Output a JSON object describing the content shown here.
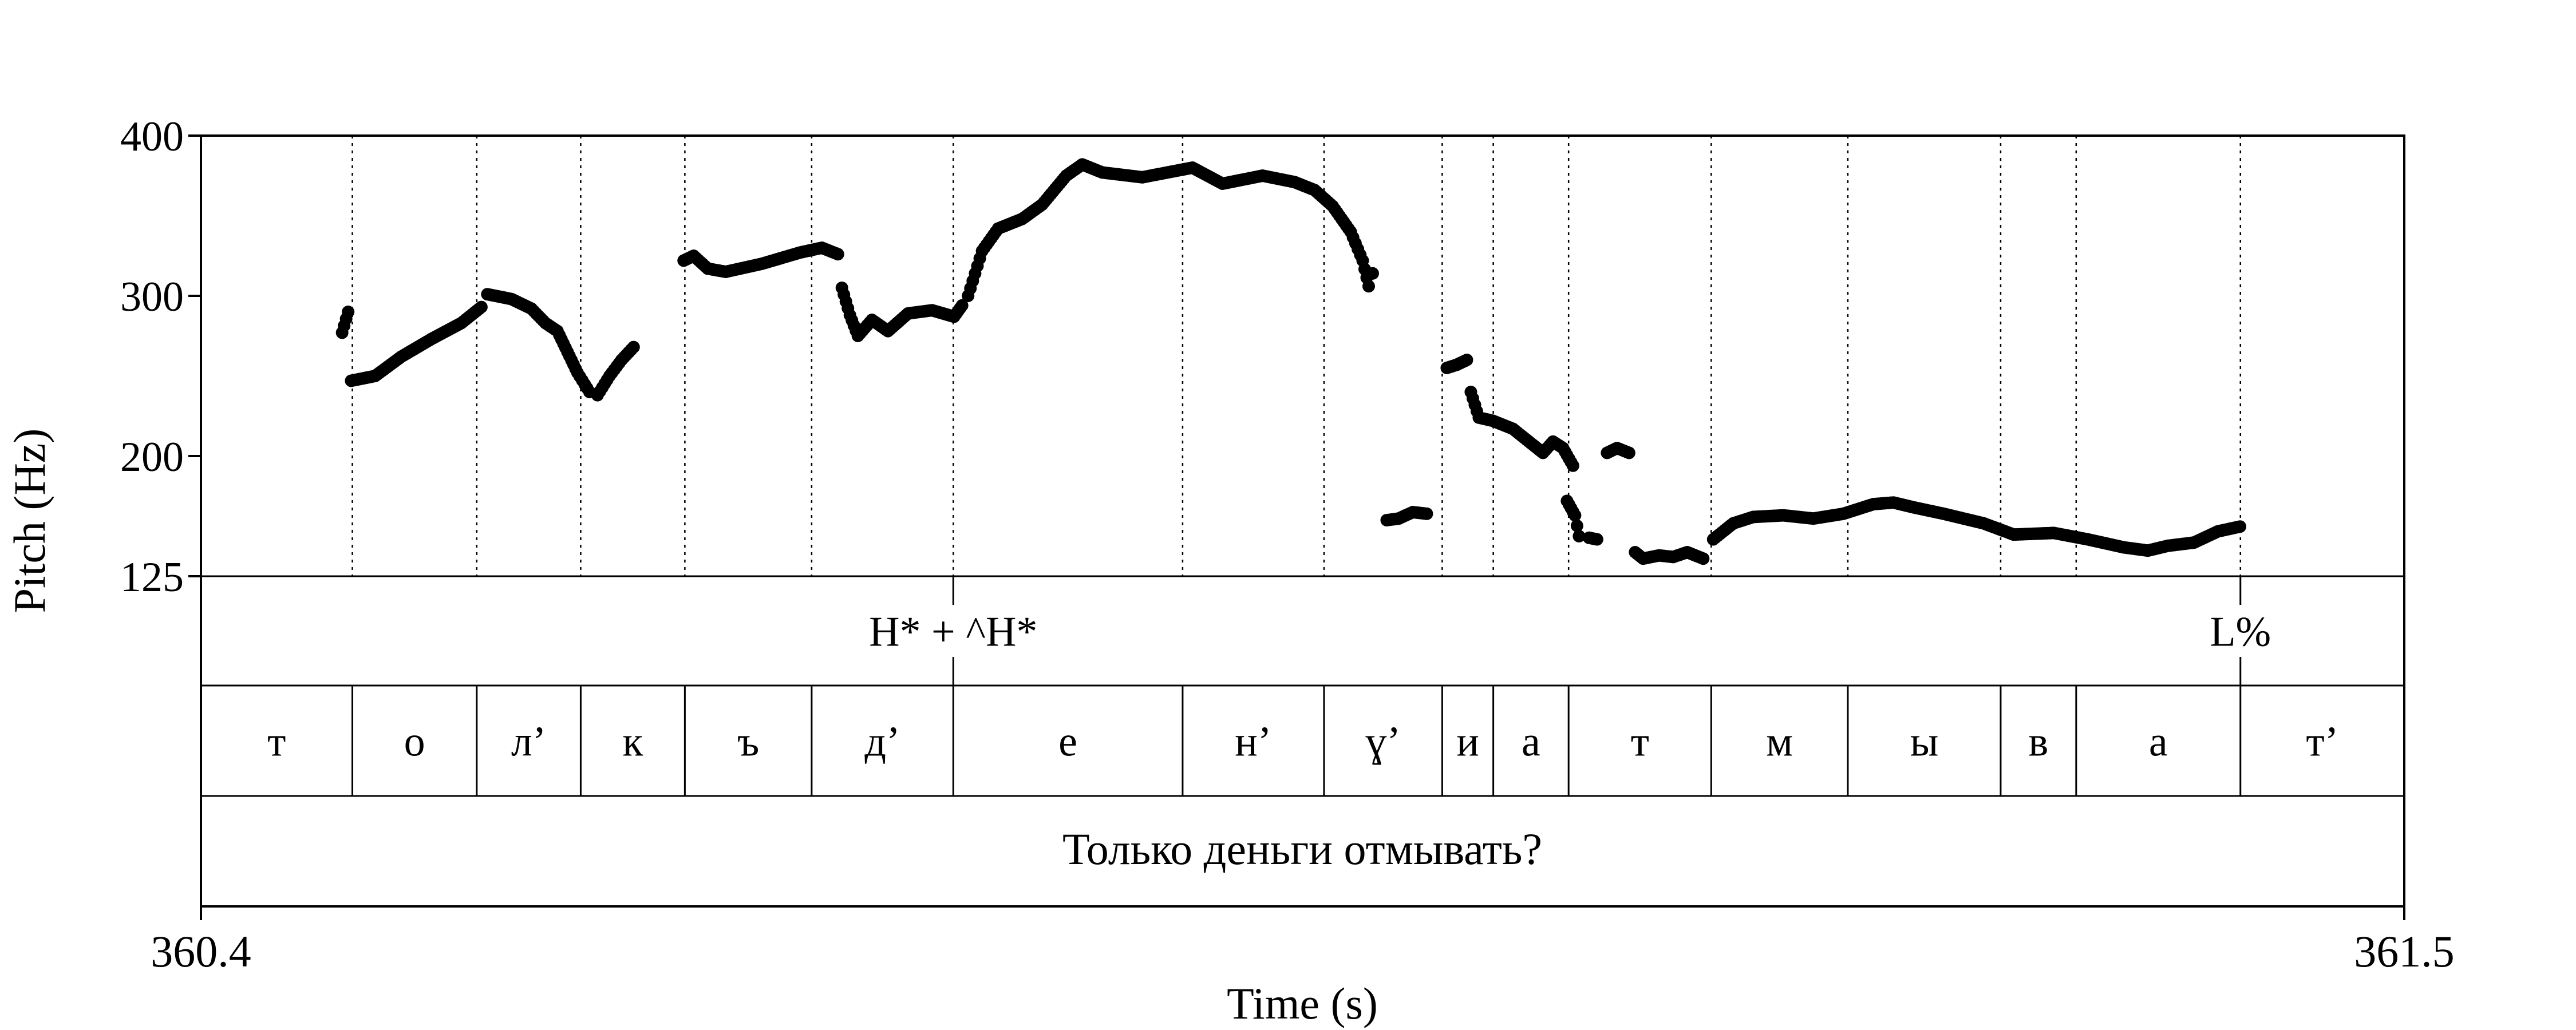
{
  "chart_data": {
    "type": "scatter",
    "xlabel": "Time (s)",
    "ylabel": "Pitch (Hz)",
    "xlim": [
      360.4,
      361.5
    ],
    "ylim": [
      125,
      400
    ],
    "x_ticks": [
      "360.4",
      "361.5"
    ],
    "y_ticks": [
      125,
      200,
      300,
      400
    ],
    "boundaries": [
      360.4756,
      360.5377,
      360.5896,
      360.6416,
      360.7049,
      360.7756,
      360.8901,
      360.9607,
      361.0197,
      361.0452,
      361.0828,
      361.154,
      361.2222,
      361.2985,
      361.3362,
      361.4182
    ],
    "phones": [
      "т",
      "о",
      "л’",
      "к",
      "ъ",
      "д’",
      "е",
      "н’",
      "ɣ’",
      "и",
      "а",
      "т",
      "м",
      "ы",
      "в",
      "а",
      "т’"
    ],
    "tones": [
      {
        "label": "H* + ^H*",
        "time": 360.7756
      },
      {
        "label": "L%",
        "time": 361.4182
      }
    ],
    "sentence": "Только деньги отмывать?",
    "segments": [
      {
        "x": [
          360.4705,
          360.4735
        ],
        "y": [
          277,
          290
        ]
      },
      {
        "x": [
          360.475,
          360.487,
          360.5,
          360.515,
          360.53,
          360.54
        ],
        "y": [
          247,
          250,
          262,
          273,
          283,
          293
        ]
      },
      {
        "x": [
          360.543,
          360.555,
          360.565,
          360.572,
          360.578,
          360.583,
          360.588,
          360.594
        ],
        "y": [
          301,
          298,
          292,
          283,
          278,
          265,
          252,
          240
        ]
      },
      {
        "x": [
          360.598,
          360.604,
          360.61,
          360.616
        ],
        "y": [
          238,
          250,
          260,
          268
        ]
      },
      {
        "x": [
          360.641,
          360.646,
          360.653,
          360.662,
          360.68,
          360.699,
          360.71,
          360.718
        ],
        "y": [
          322,
          325,
          317,
          315,
          320,
          327,
          330,
          326
        ]
      },
      {
        "x": [
          360.72,
          360.724,
          360.728,
          360.735,
          360.743,
          360.753,
          360.765,
          360.776,
          360.78
        ],
        "y": [
          305,
          288,
          275,
          285,
          278,
          289,
          291,
          287,
          294
        ]
      },
      {
        "x": [
          360.783,
          360.79,
          360.798,
          360.81,
          360.82,
          360.832,
          360.84,
          360.85,
          360.87,
          360.895,
          360.91,
          360.93,
          360.946,
          360.956,
          360.965,
          360.974,
          360.98,
          360.983
        ],
        "y": [
          300,
          328,
          342,
          348,
          357,
          375,
          382,
          377,
          374,
          380,
          370,
          375,
          371,
          366,
          356,
          340,
          322,
          306
        ]
      },
      {
        "x": [
          360.985
        ],
        "y": [
          314
        ]
      },
      {
        "x": [
          360.992,
          360.998,
          361.005,
          361.012
        ],
        "y": [
          160,
          161,
          165,
          164
        ]
      },
      {
        "x": [
          361.022,
          361.027,
          361.032
        ],
        "y": [
          255,
          257,
          260
        ]
      },
      {
        "x": [
          361.034,
          361.038,
          361.045,
          361.055,
          361.065,
          361.07,
          361.075,
          361.08,
          361.085
        ],
        "y": [
          240,
          224,
          222,
          217,
          207,
          202,
          209,
          205,
          194
        ]
      },
      {
        "x": [
          361.082,
          361.086,
          361.088
        ],
        "y": [
          172,
          163,
          150
        ]
      },
      {
        "x": [
          361.093,
          361.097
        ],
        "y": [
          149,
          148
        ]
      },
      {
        "x": [
          361.102,
          361.107,
          361.113
        ],
        "y": [
          202,
          205,
          202
        ]
      },
      {
        "x": [
          361.116,
          361.12,
          361.128,
          361.135,
          361.142,
          361.15
        ],
        "y": [
          140,
          136,
          138,
          137,
          140,
          136
        ]
      },
      {
        "x": [
          361.155,
          361.165,
          361.175,
          361.19,
          361.205,
          361.22,
          361.235,
          361.245,
          361.255,
          361.27,
          361.29,
          361.305,
          361.325,
          361.342,
          361.36,
          361.372,
          361.382,
          361.395,
          361.407,
          361.418
        ],
        "y": [
          148,
          158,
          162,
          163,
          161,
          164,
          170,
          171,
          168,
          164,
          158,
          151,
          152,
          148,
          143,
          141,
          144,
          146,
          153,
          156
        ]
      }
    ]
  }
}
